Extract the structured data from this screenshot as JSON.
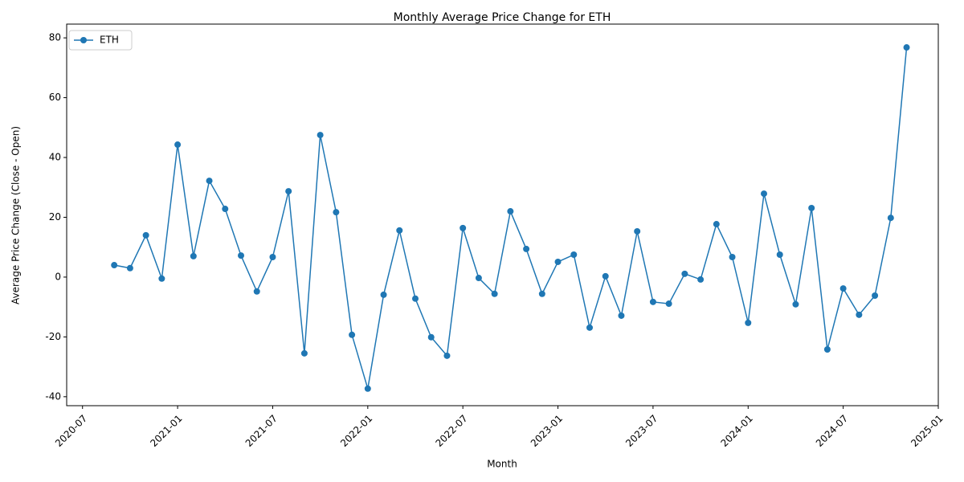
{
  "chart_data": {
    "type": "line",
    "title": "Monthly Average Price Change for ETH",
    "x_label": "Month",
    "y_label": "Average Price Change (Close - Open)",
    "x": [
      "2020-09",
      "2020-10",
      "2020-11",
      "2020-12",
      "2021-01",
      "2021-02",
      "2021-03",
      "2021-04",
      "2021-05",
      "2021-06",
      "2021-07",
      "2021-08",
      "2021-09",
      "2021-10",
      "2021-11",
      "2021-12",
      "2022-01",
      "2022-02",
      "2022-03",
      "2022-04",
      "2022-05",
      "2022-06",
      "2022-07",
      "2022-08",
      "2022-09",
      "2022-10",
      "2022-11",
      "2022-12",
      "2023-01",
      "2023-02",
      "2023-03",
      "2023-04",
      "2023-05",
      "2023-06",
      "2023-07",
      "2023-08",
      "2023-09",
      "2023-10",
      "2023-11",
      "2023-12",
      "2024-01",
      "2024-02",
      "2024-03",
      "2024-04",
      "2024-05",
      "2024-06",
      "2024-07",
      "2024-08",
      "2024-09",
      "2024-10",
      "2024-11"
    ],
    "series": [
      {
        "name": "ETH",
        "color": "#1f77b4",
        "values": [
          4.0,
          3.0,
          14.0,
          -0.5,
          44.3,
          7.0,
          32.2,
          22.8,
          7.2,
          -4.8,
          6.7,
          28.7,
          -25.5,
          47.5,
          21.7,
          -19.3,
          -37.3,
          -5.9,
          15.6,
          -7.2,
          -20.1,
          -26.3,
          16.4,
          -0.3,
          -5.6,
          22.0,
          9.4,
          -5.6,
          5.1,
          7.5,
          -16.9,
          0.3,
          -12.9,
          15.3,
          -8.3,
          -8.9,
          1.1,
          -0.8,
          17.7,
          6.7,
          -15.3,
          27.9,
          7.5,
          -9.1,
          23.1,
          -24.2,
          -3.8,
          -12.6,
          -6.2,
          19.8,
          76.8
        ]
      }
    ],
    "xlim": [
      "2020-06",
      "2025-01"
    ],
    "xticks": [
      "2020-07",
      "2021-01",
      "2021-07",
      "2022-01",
      "2022-07",
      "2023-01",
      "2023-07",
      "2024-01",
      "2024-07",
      "2025-01"
    ],
    "ylim": [
      -43,
      84.6
    ],
    "yticks": [
      -40,
      -20,
      0,
      20,
      40,
      60,
      80
    ],
    "grid": false,
    "legend": "upper-left"
  }
}
